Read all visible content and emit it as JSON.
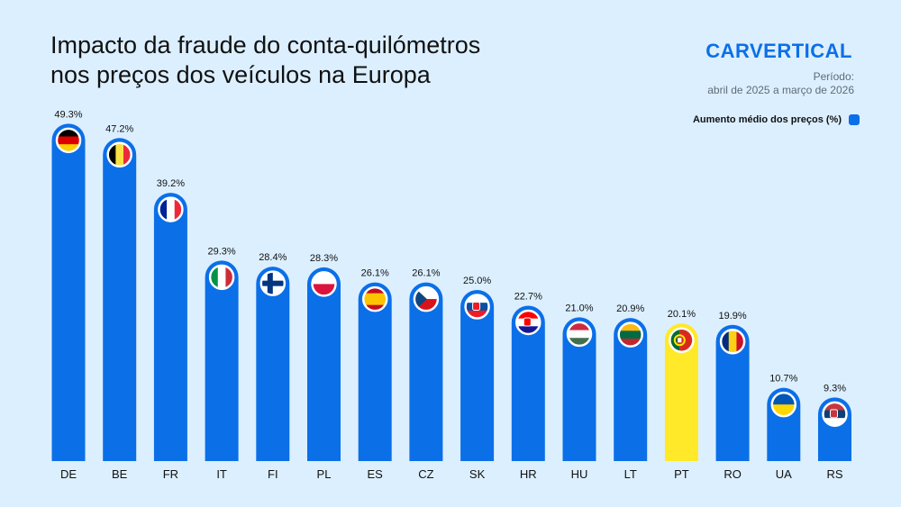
{
  "title": {
    "line1": "Impacto da fraude do conta-quilómetros",
    "line2": "nos preços dos veículos na Europa"
  },
  "brand": "CARVERTICAL",
  "period": {
    "label": "Período:",
    "range": "abril de 2025 a março de 2026"
  },
  "legend": {
    "label": "Aumento médio dos preços (%)"
  },
  "colors": {
    "bar": "#0b6fe8",
    "highlight": "#ffe928",
    "background": "#dcefff"
  },
  "chart_data": {
    "type": "bar",
    "categories": [
      "DE",
      "BE",
      "FR",
      "IT",
      "FI",
      "PL",
      "ES",
      "CZ",
      "SK",
      "HR",
      "HU",
      "LT",
      "PT",
      "RO",
      "UA",
      "RS"
    ],
    "series": [
      {
        "name": "Aumento médio dos preços (%)",
        "values": [
          49.3,
          47.2,
          39.2,
          29.3,
          28.4,
          28.3,
          26.1,
          26.1,
          25.0,
          22.7,
          21.0,
          20.9,
          20.1,
          19.9,
          10.7,
          9.3
        ]
      }
    ],
    "data_labels": [
      "49.3%",
      "47.2%",
      "39.2%",
      "29.3%",
      "28.4%",
      "28.3%",
      "26.1%",
      "26.1%",
      "25.0%",
      "22.7%",
      "21.0%",
      "20.9%",
      "20.1%",
      "19.9%",
      "10.7%",
      "9.3%"
    ],
    "highlighted_category": "PT",
    "flag_icons": [
      "germany-flag-icon",
      "belgium-flag-icon",
      "france-flag-icon",
      "italy-flag-icon",
      "finland-flag-icon",
      "poland-flag-icon",
      "spain-flag-icon",
      "czechia-flag-icon",
      "slovakia-flag-icon",
      "croatia-flag-icon",
      "hungary-flag-icon",
      "lithuania-flag-icon",
      "portugal-flag-icon",
      "romania-flag-icon",
      "ukraine-flag-icon",
      "serbia-flag-icon"
    ],
    "ylim": [
      0,
      50
    ],
    "grid": false,
    "legend_position": "top-right"
  }
}
